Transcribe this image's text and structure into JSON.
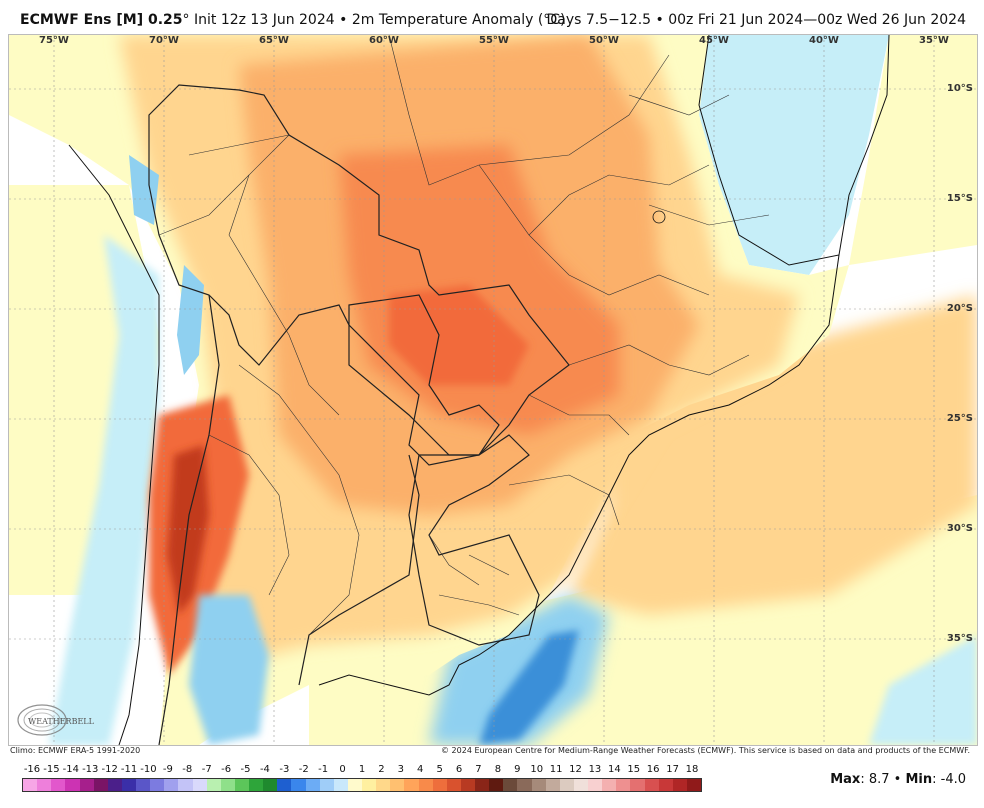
{
  "header": {
    "model": "ECMWF Ens [M] 0.25",
    "degree": "°",
    "init": "Init 12z 13 Jun 2024",
    "bullet": "•",
    "variable": "2m Temperature Anomaly (°C)",
    "right": "Days 7.5−12.5 • 00z Fri 21 Jun 2024—00z Wed 26 Jun 2024"
  },
  "map": {
    "longitude_labels": [
      "75°W",
      "70°W",
      "65°W",
      "60°W",
      "55°W",
      "50°W",
      "45°W",
      "40°W",
      "35°W"
    ],
    "latitude_labels": [
      "10°S",
      "15°S",
      "20°S",
      "25°S",
      "30°S",
      "35°S"
    ],
    "colors": {
      "land_neutral": "#fefcc4",
      "warm_light": "#ffd58f",
      "warm_mid": "#fbb06b",
      "warm_strong": "#f78a4f",
      "warm_hot": "#f26b3a",
      "very_hot": "#c23b1c",
      "cold_light": "#c6eef8",
      "cold_mid": "#8fd0f0",
      "cold_strong": "#3a8fd8",
      "ocean_neutral": "#ffffff"
    },
    "watermark": "WEATHERBELL"
  },
  "footer": {
    "climo": "Climo: ECMWF ERA-5 1991-2020",
    "copyright": "© 2024 European Centre for Medium-Range Weather Forecasts (ECMWF). This service is based on data and products of the ECMWF."
  },
  "colorbar": {
    "labels": [
      "-16",
      "-15",
      "-14",
      "-13",
      "-12",
      "-11",
      "-10",
      "-9",
      "-8",
      "-7",
      "-6",
      "-5",
      "-4",
      "-3",
      "-2",
      "-1",
      "0",
      "1",
      "2",
      "3",
      "4",
      "5",
      "6",
      "7",
      "8",
      "9",
      "10",
      "11",
      "12",
      "13",
      "14",
      "15",
      "16",
      "17",
      "18"
    ],
    "colors": [
      "#f7a6e6",
      "#ee7fdb",
      "#e257cc",
      "#cc33b3",
      "#a61f8c",
      "#7a1466",
      "#4b1f8a",
      "#3a2fa8",
      "#5a56c8",
      "#7c7be0",
      "#a0a0ee",
      "#c3c3f7",
      "#d9d9fb",
      "#b9f0b0",
      "#8fe08a",
      "#5cc65a",
      "#2ea53a",
      "#1f8a2e",
      "#1e5fd0",
      "#3a86ec",
      "#6cacf5",
      "#9fcdf8",
      "#c9e8fb",
      "#fffacc",
      "#fff0a0",
      "#ffd88a",
      "#ffc070",
      "#ffa45a",
      "#f88a4a",
      "#ee6e3c",
      "#d9522e",
      "#b83a22",
      "#8a2518",
      "#5f1a10",
      "#6b4a3a",
      "#8a6a5a",
      "#a68a7a",
      "#c2aa9c",
      "#dccbc0",
      "#f0e0da",
      "#f8d0d0",
      "#f4b0b0",
      "#ee9090",
      "#e47070",
      "#d85050",
      "#c83838",
      "#b02626",
      "#901a1a"
    ]
  },
  "stats": {
    "max_label": "Max",
    "max_value": ": 8.7",
    "bullet": " • ",
    "min_label": "Min",
    "min_value": ": -4.0"
  }
}
